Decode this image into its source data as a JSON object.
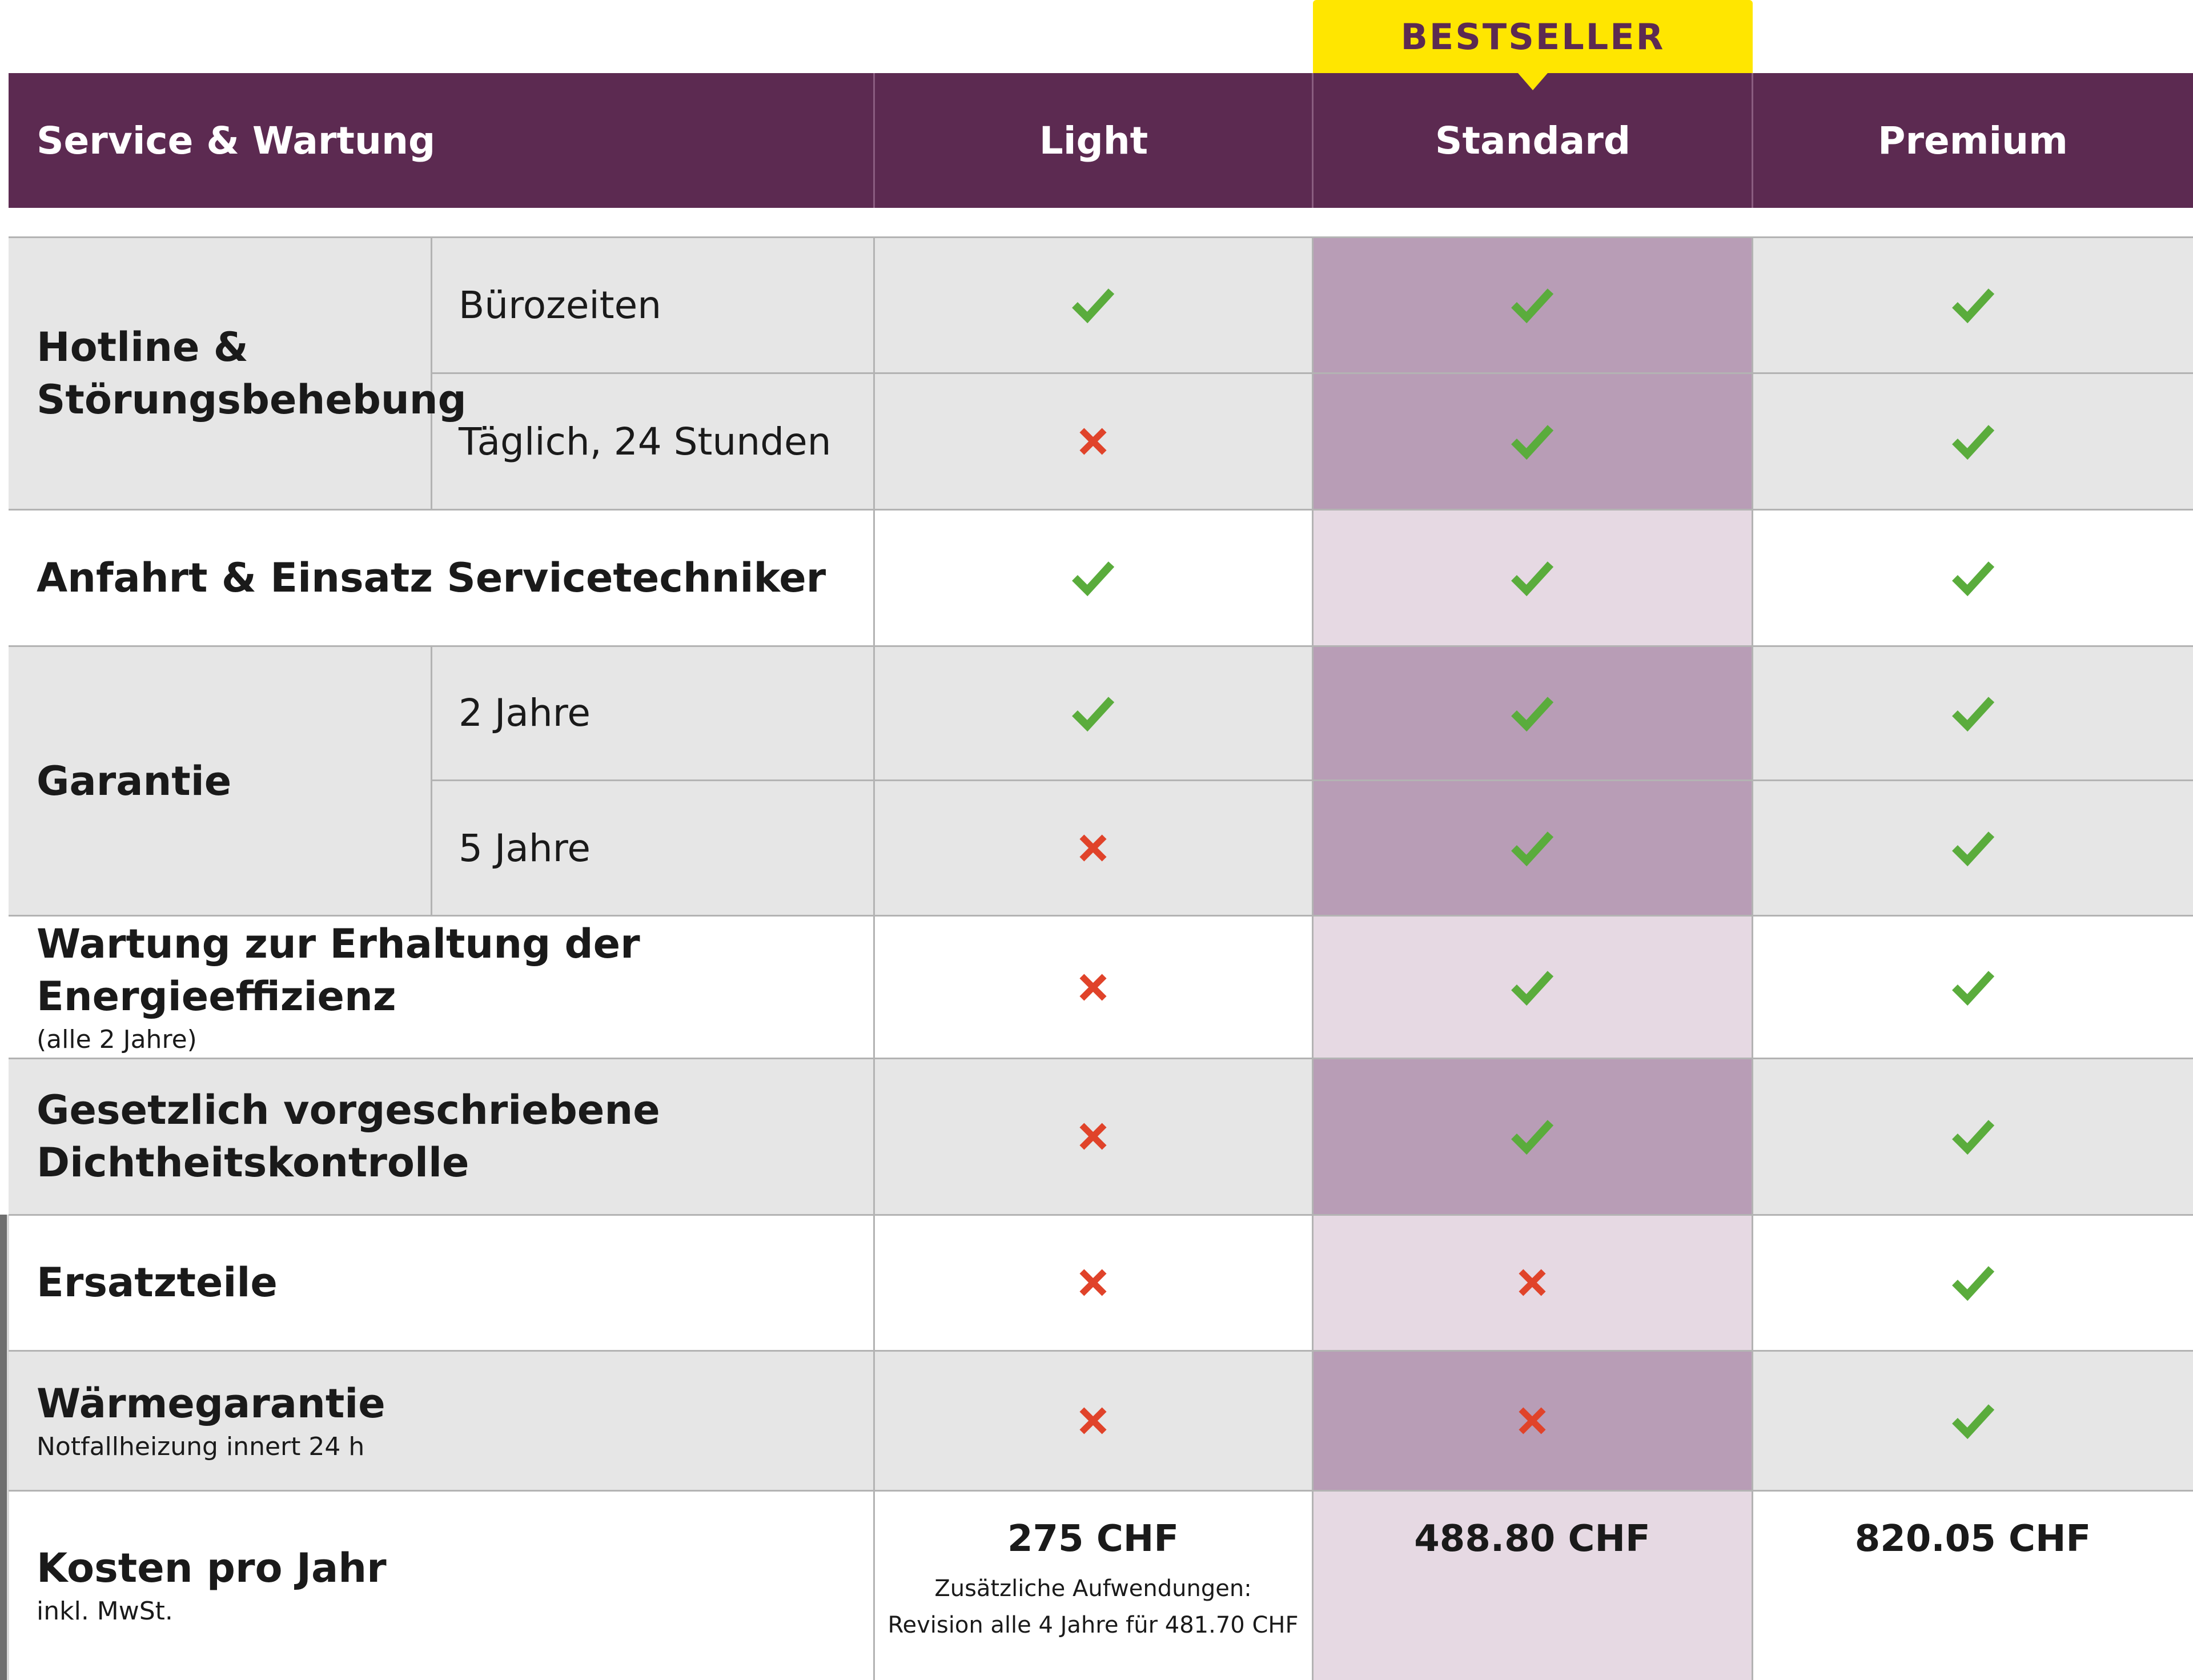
{
  "badge": "BESTSELLER",
  "header": {
    "title": "Service & Wartung",
    "plans": [
      "Light",
      "Standard",
      "Premium"
    ]
  },
  "rows": [
    {
      "label": "Hotline &\nStörungsbehebung",
      "options": [
        {
          "name": "Bürozeiten",
          "values": [
            "check",
            "check",
            "check"
          ]
        },
        {
          "name": "Täglich, 24 Stunden",
          "values": [
            "cross",
            "check",
            "check"
          ]
        }
      ]
    },
    {
      "label": "Anfahrt & Einsatz Servicetechniker",
      "values": [
        "check",
        "check",
        "check"
      ]
    },
    {
      "label": "Garantie",
      "options": [
        {
          "name": "2 Jahre",
          "values": [
            "check",
            "check",
            "check"
          ]
        },
        {
          "name": "5 Jahre",
          "values": [
            "cross",
            "check",
            "check"
          ]
        }
      ]
    },
    {
      "label": "Wartung zur Erhaltung der Energieeffizienz",
      "sublabel": "(alle 2 Jahre)",
      "values": [
        "cross",
        "check",
        "check"
      ]
    },
    {
      "label": "Gesetzlich vorgeschriebene\nDichtheitskontrolle",
      "values": [
        "cross",
        "check",
        "check"
      ]
    },
    {
      "label": "Ersatzteile",
      "values": [
        "cross",
        "cross",
        "check"
      ]
    },
    {
      "label": "Wärmegarantie",
      "sublabel": "Notfallheizung innert 24 h",
      "values": [
        "cross",
        "cross",
        "check"
      ]
    }
  ],
  "cost": {
    "label": "Kosten pro Jahr",
    "sublabel": "inkl. MwSt.",
    "prices": [
      "275 CHF",
      "488.80 CHF",
      "820.05 CHF"
    ],
    "note_line1": "Zusätzliche Aufwendungen:",
    "note_line2": "Revision alle 4 Jahre für 481.70 CHF"
  },
  "colors": {
    "header": "#5c2a51",
    "badge": "#ffe600",
    "badge_text": "#5c2a51",
    "check": "#5aac3c",
    "cross": "#e0432a",
    "standard_dark": "#b89db6",
    "standard_light": "#e6d9e3",
    "row_gray": "#e6e6e6"
  },
  "icons": {
    "check": "check-icon",
    "cross": "cross-icon"
  }
}
